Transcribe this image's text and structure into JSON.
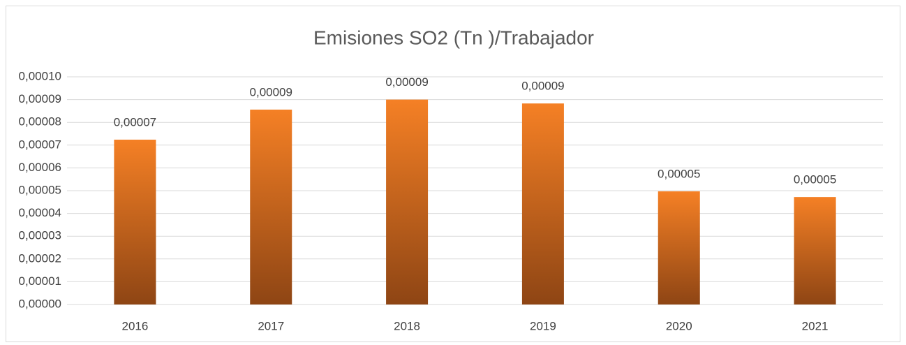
{
  "chart_data": {
    "type": "bar",
    "title": "Emisiones  SO2 (Tn )/Trabajador",
    "categories": [
      "2016",
      "2017",
      "2018",
      "2019",
      "2020",
      "2021"
    ],
    "values": [
      7.24e-05,
      8.56e-05,
      9e-05,
      8.83e-05,
      4.97e-05,
      4.72e-05
    ],
    "value_labels": [
      "0,00007",
      "0,00009",
      "0,00009",
      "0,00009",
      "0,00005",
      "0,00005"
    ],
    "color": "#f58025",
    "ylim": [
      0,
      0.0001
    ],
    "yticks": [
      {
        "value": 0,
        "label": "0,00000"
      },
      {
        "value": 1e-05,
        "label": "0,00001"
      },
      {
        "value": 2e-05,
        "label": "0,00002"
      },
      {
        "value": 3e-05,
        "label": "0,00003"
      },
      {
        "value": 4e-05,
        "label": "0,00004"
      },
      {
        "value": 5e-05,
        "label": "0,00005"
      },
      {
        "value": 6e-05,
        "label": "0,00006"
      },
      {
        "value": 7e-05,
        "label": "0,00007"
      },
      {
        "value": 8e-05,
        "label": "0,00008"
      },
      {
        "value": 9e-05,
        "label": "0,00009"
      },
      {
        "value": 0.0001,
        "label": "0,00010"
      }
    ],
    "grid": true
  }
}
